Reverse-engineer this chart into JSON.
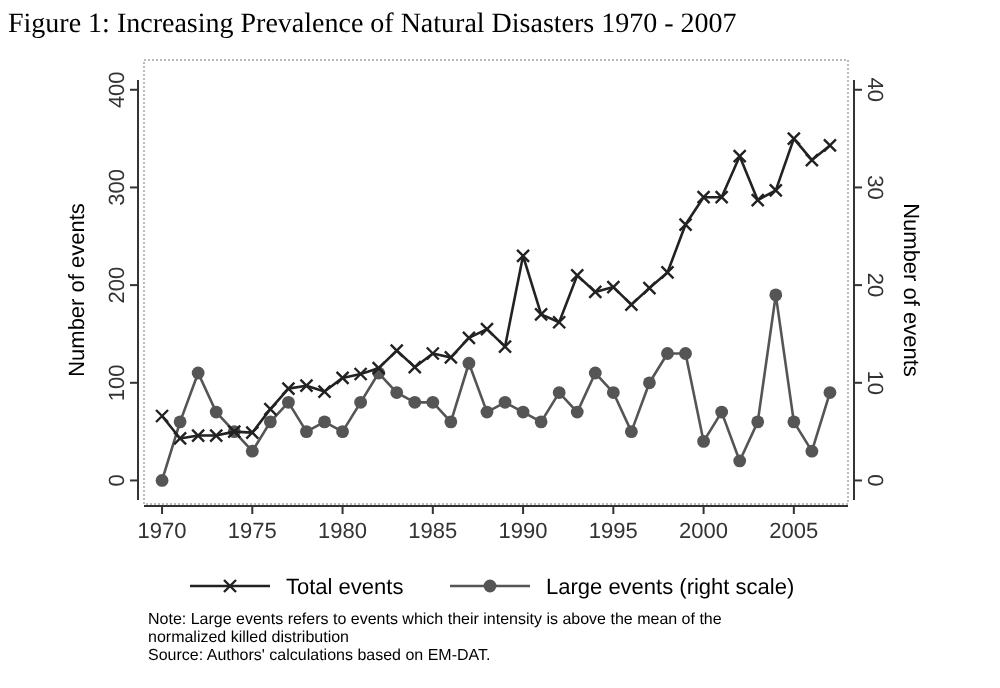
{
  "chart_data": {
    "type": "line",
    "title": "Figure 1: Increasing Prevalence of Natural Disasters 1970 - 2007",
    "ylabel": "Number of events",
    "y2label": "Number of events",
    "x": [
      1970,
      1971,
      1972,
      1973,
      1974,
      1975,
      1976,
      1977,
      1978,
      1979,
      1980,
      1981,
      1982,
      1983,
      1984,
      1985,
      1986,
      1987,
      1988,
      1989,
      1990,
      1991,
      1992,
      1993,
      1994,
      1995,
      1996,
      1997,
      1998,
      1999,
      2000,
      2001,
      2002,
      2003,
      2004,
      2005,
      2006,
      2007
    ],
    "series": [
      {
        "name": "Total events",
        "color": "#222222",
        "marker": "cross",
        "values": [
          66,
          43,
          46,
          46,
          50,
          49,
          73,
          94,
          97,
          91,
          105,
          109,
          115,
          133,
          116,
          130,
          126,
          146,
          155,
          137,
          230,
          170,
          162,
          210,
          193,
          198,
          180,
          197,
          213,
          262,
          290,
          290,
          332,
          287,
          297,
          350,
          328,
          343
        ]
      },
      {
        "name": "Large events (right scale)",
        "color": "#555555",
        "marker": "circle",
        "axis": "y2",
        "values": [
          0,
          6,
          11,
          7,
          5,
          3,
          6,
          8,
          5,
          6,
          5,
          8,
          11,
          9,
          8,
          8,
          6,
          12,
          7,
          8,
          7,
          6,
          9,
          7,
          11,
          9,
          5,
          10,
          13,
          13,
          4,
          7,
          2,
          6,
          19,
          6,
          3,
          9
        ]
      }
    ],
    "xlim": [
      1969,
      2008
    ],
    "xticks": [
      1970,
      1975,
      1980,
      1985,
      1990,
      1995,
      2000,
      2005
    ],
    "ylim": [
      -20,
      410
    ],
    "yticks": [
      0,
      100,
      200,
      300,
      400
    ],
    "y2lim": [
      -2,
      41
    ],
    "y2ticks": [
      0,
      10,
      20,
      30,
      40
    ],
    "line_style": "solid",
    "legend": "bottom",
    "grid": false,
    "annotations": [
      "Note: Large events refers to events which their intensity is above the mean of the normalized killed distribution",
      "Source: Authors' calculations based on EM-DAT."
    ]
  }
}
